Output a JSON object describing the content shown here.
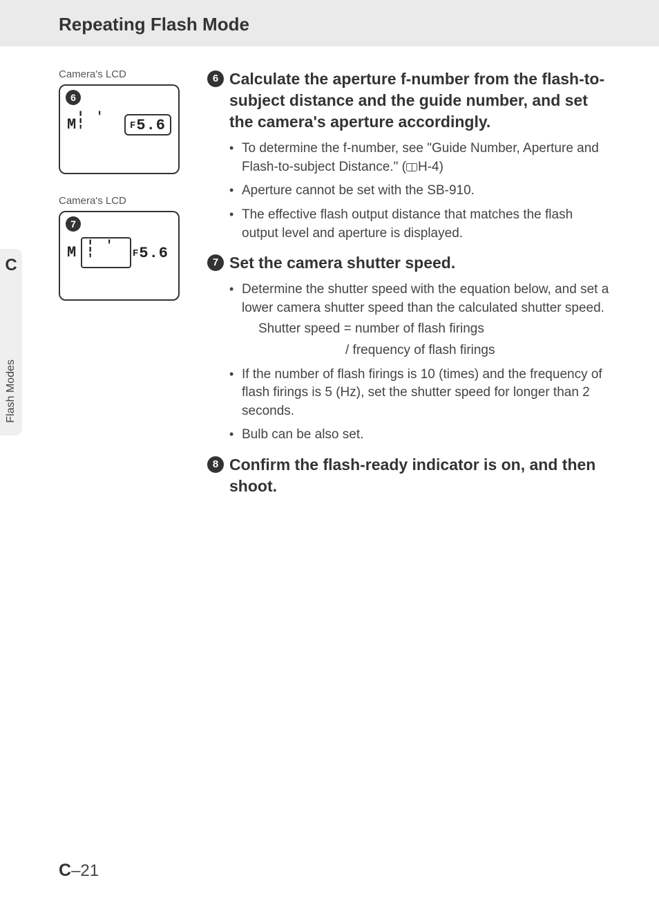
{
  "header": {
    "title": "Repeating Flash Mode"
  },
  "sideTab": {
    "letter": "C",
    "label": "Flash Modes"
  },
  "lcd1": {
    "caption": "Camera's LCD",
    "marker": "6",
    "mode": "M",
    "shutter": "¦ ' '",
    "f_prefix": "F",
    "f_value": "5.6",
    "highlight": "aperture"
  },
  "lcd2": {
    "caption": "Camera's LCD",
    "marker": "7",
    "mode": "M",
    "shutter": "¦ ' '",
    "f_prefix": "F",
    "f_value": "5.6",
    "highlight": "shutter"
  },
  "steps": {
    "s6": {
      "num": "6",
      "title": "Calculate the aperture f-number from the flash-to-subject distance and the guide number, and set the camera's aperture accordingly.",
      "bullets": [
        {
          "text_a": "To determine the f-number, see \"Guide Number, Aperture and Flash-to-subject Distance.\" (",
          "ref": "H-4",
          "text_b": ")"
        },
        {
          "text_a": "Aperture cannot be set with the SB-910."
        },
        {
          "text_a": "The effective flash output distance that matches the flash output level and aperture is displayed."
        }
      ]
    },
    "s7": {
      "num": "7",
      "title": "Set the camera shutter speed.",
      "bullets": [
        {
          "text_a": "Determine the shutter speed with the equation below, and set a lower camera shutter speed than the calculated shutter speed.",
          "eq1": "Shutter speed = number of flash firings",
          "eq2": "/ frequency of flash firings"
        },
        {
          "text_a": "If the number of flash firings is 10 (times) and the frequency of flash firings is 5 (Hz), set the shutter speed for longer than 2 seconds."
        },
        {
          "text_a": "Bulb can be also set."
        }
      ]
    },
    "s8": {
      "num": "8",
      "title": "Confirm the flash-ready indicator is on, and then shoot."
    }
  },
  "pageNumber": {
    "prefix": "C",
    "sep": "–",
    "num": "21"
  }
}
